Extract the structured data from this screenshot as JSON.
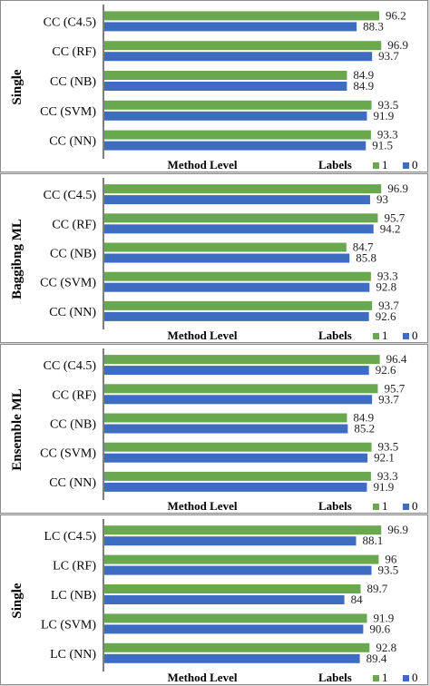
{
  "colors": {
    "series_1": "#6aa84f",
    "series_0": "#3d6cc0",
    "axis": "#555555"
  },
  "chart_data": [
    {
      "type": "bar",
      "group_label": "Single",
      "categories": [
        "CC (C4.5)",
        "CC (RF)",
        "CC (NB)",
        "CC (SVM)",
        "CC (NN)"
      ],
      "series": [
        {
          "name": "1",
          "values": [
            96.2,
            96.9,
            84.9,
            93.5,
            93.3
          ]
        },
        {
          "name": "0",
          "values": [
            88.3,
            93.7,
            84.9,
            91.9,
            91.5
          ]
        }
      ],
      "xlabel": "Method Level",
      "legend_title": "Labels",
      "legend_position": "bottom-right"
    },
    {
      "type": "bar",
      "group_label": "Baggibng ML",
      "categories": [
        "CC (C4.5)",
        "CC (RF)",
        "CC (NB)",
        "CC (SVM)",
        "CC (NN)"
      ],
      "series": [
        {
          "name": "1",
          "values": [
            96.9,
            95.7,
            84.7,
            93.3,
            93.7
          ]
        },
        {
          "name": "0",
          "values": [
            93,
            94.2,
            85.8,
            92.8,
            92.6
          ]
        }
      ],
      "xlabel": "Method Level",
      "legend_title": "Labels",
      "legend_position": "bottom-right"
    },
    {
      "type": "bar",
      "group_label": "Ensemble ML",
      "categories": [
        "CC (C4.5)",
        "CC (RF)",
        "CC (NB)",
        "CC (SVM)",
        "CC (NN)"
      ],
      "series": [
        {
          "name": "1",
          "values": [
            96.4,
            95.7,
            84.9,
            93.5,
            93.3
          ]
        },
        {
          "name": "0",
          "values": [
            92.6,
            93.7,
            85.2,
            92.1,
            91.9
          ]
        }
      ],
      "xlabel": "Method Level",
      "legend_title": "Labels",
      "legend_position": "bottom-right"
    },
    {
      "type": "bar",
      "group_label": "Single",
      "categories": [
        "LC (C4.5)",
        "LC (RF)",
        "LC (NB)",
        "LC (SVM)",
        "LC (NN)"
      ],
      "series": [
        {
          "name": "1",
          "values": [
            96.9,
            96,
            89.7,
            91.9,
            92.8
          ]
        },
        {
          "name": "0",
          "values": [
            88.1,
            93.5,
            84,
            90.6,
            89.4
          ]
        }
      ],
      "xlabel": "Method Level",
      "legend_title": "Labels",
      "legend_position": "bottom-right"
    }
  ]
}
